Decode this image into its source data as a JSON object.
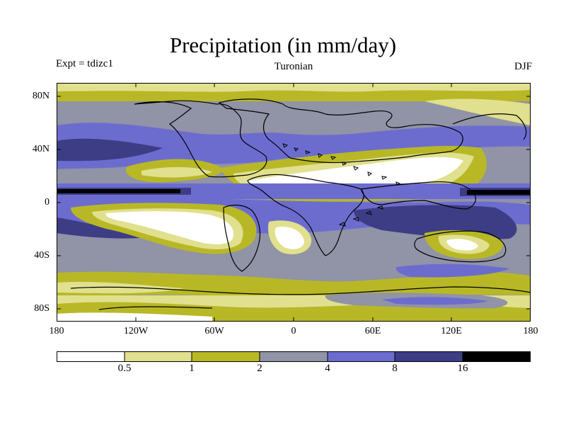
{
  "header": {
    "title": "Precipitation (in mm/day)",
    "left_label": "Expt = tdizc1",
    "center_label": "Turonian",
    "right_label": "DJF"
  },
  "map": {
    "lat_ticks": [
      "80N",
      "40N",
      "0",
      "40S",
      "80S"
    ],
    "lon_ticks": [
      "180",
      "120W",
      "60W",
      "0",
      "60E",
      "120E",
      "180"
    ]
  },
  "legend": {
    "boundaries": [
      "0.5",
      "1",
      "2",
      "4",
      "8",
      "16"
    ],
    "colors": [
      "#ffffff",
      "#e0e08e",
      "#b8b826",
      "#9193a6",
      "#6c6ccf",
      "#3d3d86",
      "#000000"
    ]
  }
}
